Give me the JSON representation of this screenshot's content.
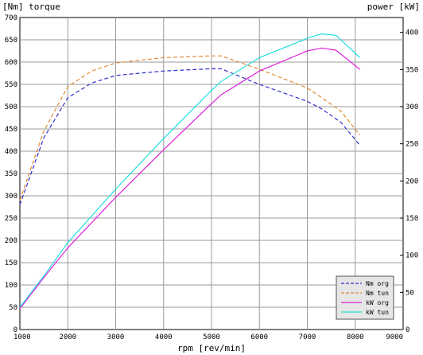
{
  "chart_data": {
    "type": "line",
    "left_axis_label": "[Nm] torque",
    "right_axis_label": "power [kW]",
    "xlabel": "rpm [rev/min]",
    "xlim": [
      1000,
      9000
    ],
    "ylim_left": [
      0,
      700
    ],
    "ylim_right": [
      0,
      420
    ],
    "x_ticks": [
      1000,
      2000,
      3000,
      4000,
      5000,
      6000,
      7000,
      8000,
      9000
    ],
    "y_left_ticks": [
      0,
      50,
      100,
      150,
      200,
      250,
      300,
      350,
      400,
      450,
      500,
      550,
      600,
      650,
      700
    ],
    "y_right_ticks": [
      0,
      50,
      100,
      150,
      200,
      250,
      300,
      350,
      400
    ],
    "grid": true,
    "legend_position": "bottom-right",
    "series": [
      {
        "name": "Nm org",
        "axis": "left",
        "color": "#3333cc",
        "dash": "dashed",
        "points": [
          [
            1000,
            280
          ],
          [
            1500,
            430
          ],
          [
            2000,
            520
          ],
          [
            2500,
            553
          ],
          [
            3000,
            570
          ],
          [
            4000,
            580
          ],
          [
            5000,
            585
          ],
          [
            5200,
            585
          ],
          [
            6000,
            550
          ],
          [
            7000,
            512
          ],
          [
            7300,
            495
          ],
          [
            7700,
            465
          ],
          [
            8100,
            413
          ]
        ]
      },
      {
        "name": "Nm tun",
        "axis": "left",
        "color": "#e08a3a",
        "dash": "dashed",
        "points": [
          [
            1000,
            290
          ],
          [
            1500,
            445
          ],
          [
            2000,
            545
          ],
          [
            2500,
            580
          ],
          [
            3000,
            598
          ],
          [
            4000,
            610
          ],
          [
            5000,
            614
          ],
          [
            5200,
            614
          ],
          [
            6000,
            584
          ],
          [
            7000,
            542
          ],
          [
            7300,
            520
          ],
          [
            7700,
            490
          ],
          [
            8100,
            436
          ]
        ]
      },
      {
        "name": "kW org",
        "axis": "right",
        "color": "#dd22dd",
        "dash": "solid",
        "points": [
          [
            1000,
            28
          ],
          [
            1500,
            70
          ],
          [
            2000,
            110
          ],
          [
            3000,
            178
          ],
          [
            4000,
            242
          ],
          [
            5000,
            304
          ],
          [
            5200,
            316
          ],
          [
            6000,
            348
          ],
          [
            7000,
            375
          ],
          [
            7300,
            379
          ],
          [
            7600,
            376
          ],
          [
            8100,
            350
          ]
        ]
      },
      {
        "name": "kW tun",
        "axis": "right",
        "color": "#22dddd",
        "dash": "solid",
        "points": [
          [
            1000,
            30
          ],
          [
            1500,
            72
          ],
          [
            2000,
            117
          ],
          [
            3000,
            189
          ],
          [
            4000,
            257
          ],
          [
            5000,
            322
          ],
          [
            5200,
            334
          ],
          [
            6000,
            366
          ],
          [
            7000,
            392
          ],
          [
            7300,
            398
          ],
          [
            7600,
            396
          ],
          [
            8100,
            366
          ]
        ]
      }
    ]
  }
}
